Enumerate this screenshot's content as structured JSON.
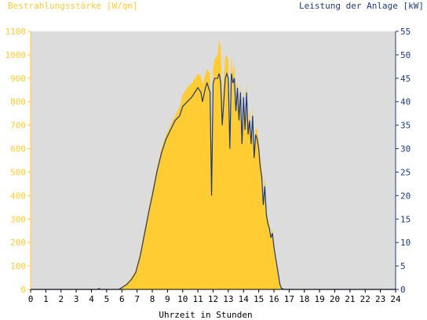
{
  "chart_data": {
    "type": "area",
    "left_axis_label": "Bestrahlungsstärke [W/qm]",
    "right_axis_label": "Leistung der Anlage [kW]",
    "xlabel": "Uhrzeit in Stunden",
    "x_ticks": [
      "0",
      "1",
      "2",
      "3",
      "4",
      "5",
      "6",
      "7",
      "8",
      "9",
      "10",
      "11",
      "12",
      "13",
      "14",
      "15",
      "16",
      "17",
      "18",
      "19",
      "20",
      "21",
      "22",
      "23",
      "24"
    ],
    "y_left_ticks": [
      "0",
      "100",
      "200",
      "300",
      "400",
      "500",
      "600",
      "700",
      "800",
      "900",
      "1000",
      "1100"
    ],
    "y_right_ticks": [
      "0",
      "5",
      "10",
      "15",
      "20",
      "25",
      "30",
      "35",
      "40",
      "45",
      "50",
      "55"
    ],
    "xlim": [
      0,
      24
    ],
    "ylim_left": [
      0,
      1100
    ],
    "ylim_right": [
      0,
      55
    ],
    "grid": false,
    "colors": {
      "plot_bg": "#dcdcdc",
      "irradiance": "#ffcc33",
      "power": "#1f3a7a",
      "left_axis": "#ffcc33",
      "right_axis": "#1f3a7a"
    },
    "series": [
      {
        "axis": "left",
        "style": "area",
        "x": [
          0,
          4.4,
          4.5,
          4.6,
          5.8,
          6.0,
          6.3,
          6.6,
          6.9,
          7.2,
          7.5,
          7.8,
          8.0,
          8.3,
          8.6,
          8.9,
          9.2,
          9.5,
          9.8,
          10.0,
          10.3,
          10.6,
          10.8,
          11.0,
          11.2,
          11.3,
          11.5,
          11.6,
          11.8,
          11.9,
          12.0,
          12.1,
          12.3,
          12.4,
          12.5,
          12.6,
          12.8,
          12.9,
          13.0,
          13.1,
          13.2,
          13.3,
          13.4,
          13.5,
          13.6,
          13.7,
          13.8,
          13.9,
          14.0,
          14.1,
          14.2,
          14.3,
          14.4,
          14.5,
          14.6,
          14.7,
          14.8,
          14.9,
          15.0,
          15.1,
          15.2,
          15.3,
          15.4,
          15.5,
          15.6,
          15.7,
          15.8,
          15.9,
          16.0,
          16.1,
          16.2,
          16.3,
          16.4,
          16.5,
          16.7,
          16.9,
          17.0,
          17.1,
          17.2,
          17.3,
          17.5,
          17.7,
          18.0,
          18.3,
          18.6,
          18.9,
          19.1,
          19.3,
          24
        ],
        "values": [
          0,
          0,
          5,
          0,
          0,
          10,
          25,
          50,
          80,
          160,
          260,
          360,
          420,
          520,
          600,
          660,
          700,
          740,
          780,
          830,
          860,
          880,
          900,
          920,
          910,
          870,
          920,
          940,
          920,
          600,
          950,
          980,
          1000,
          1070,
          1030,
          800,
          990,
          1000,
          980,
          600,
          1000,
          920,
          960,
          800,
          900,
          760,
          880,
          660,
          860,
          700,
          880,
          700,
          760,
          650,
          780,
          600,
          690,
          680,
          640,
          560,
          520,
          380,
          480,
          340,
          300,
          280,
          230,
          260,
          200,
          150,
          110,
          60,
          20,
          5,
          0,
          0,
          0,
          0,
          0,
          0,
          0,
          0,
          0,
          0,
          0,
          0,
          0,
          0,
          0
        ],
        "_note": "irradiance series values"
      },
      {
        "axis": "right",
        "style": "line",
        "x": [
          0,
          4.4,
          4.5,
          4.6,
          5.8,
          6.0,
          6.3,
          6.6,
          6.9,
          7.2,
          7.5,
          7.8,
          8.0,
          8.3,
          8.6,
          8.9,
          9.2,
          9.5,
          9.8,
          10.0,
          10.3,
          10.6,
          10.8,
          11.0,
          11.2,
          11.3,
          11.5,
          11.6,
          11.8,
          11.9,
          12.0,
          12.1,
          12.3,
          12.4,
          12.5,
          12.6,
          12.8,
          12.9,
          13.0,
          13.1,
          13.2,
          13.3,
          13.4,
          13.5,
          13.6,
          13.7,
          13.8,
          13.9,
          14.0,
          14.1,
          14.2,
          14.3,
          14.4,
          14.5,
          14.6,
          14.7,
          14.8,
          14.9,
          15.0,
          15.1,
          15.2,
          15.3,
          15.4,
          15.5,
          15.6,
          15.7,
          15.8,
          15.9,
          16.0,
          16.1,
          16.2,
          16.3,
          16.4,
          16.5,
          16.7,
          16.9,
          17.0,
          17.1,
          17.2,
          17.3,
          17.5,
          17.7,
          18.0,
          18.3,
          18.6,
          18.9,
          19.1,
          19.3,
          24
        ],
        "values": [
          0,
          0,
          0.2,
          0,
          0,
          0.4,
          1,
          2,
          3.5,
          7,
          12,
          17,
          20,
          25,
          29,
          32,
          34,
          36,
          37,
          39,
          40,
          41,
          42,
          43,
          42,
          40,
          43,
          44,
          42,
          20,
          44,
          45,
          45,
          46,
          44,
          35,
          45,
          46,
          45,
          30,
          46,
          44,
          45,
          38,
          43,
          36,
          42,
          31,
          41,
          34,
          42,
          33,
          36,
          31,
          37,
          28,
          33,
          32,
          30,
          26,
          24,
          18,
          22,
          16,
          14,
          13,
          11,
          12,
          9,
          7,
          5,
          3,
          1,
          0.2,
          0,
          0,
          0,
          0,
          0,
          0,
          0,
          0,
          0,
          0,
          0,
          0,
          0,
          0,
          0
        ]
      }
    ]
  }
}
